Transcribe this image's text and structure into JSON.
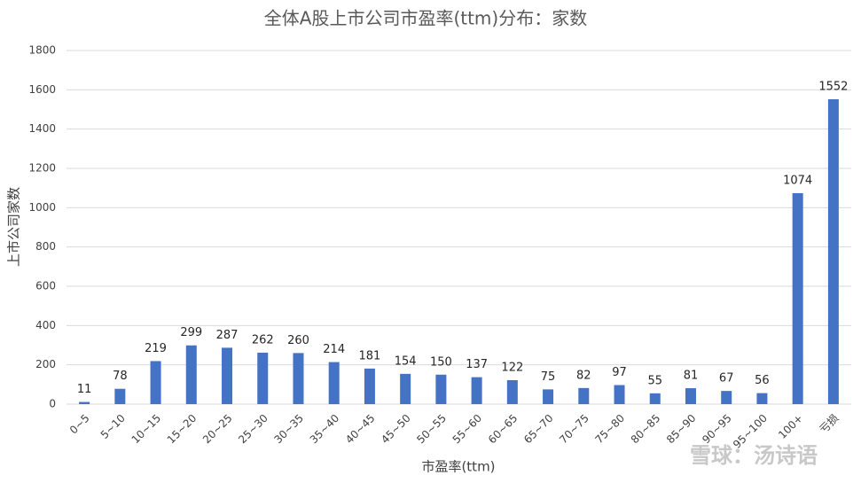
{
  "chart_data": {
    "type": "bar",
    "title": "全体A股上市公司市盈率(ttm)分布：家数",
    "x_label": "市盈率(ttm)",
    "y_label": "上市公司家数",
    "categories": [
      "0~5",
      "5~10",
      "10~15",
      "15~20",
      "20~25",
      "25~30",
      "30~35",
      "35~40",
      "40~45",
      "45~50",
      "50~55",
      "55~60",
      "60~65",
      "65~70",
      "70~75",
      "75~80",
      "80~85",
      "85~90",
      "90~95",
      "95~100",
      "100+",
      "亏损"
    ],
    "values": [
      11,
      78,
      219,
      299,
      287,
      262,
      260,
      214,
      181,
      154,
      150,
      137,
      122,
      75,
      82,
      97,
      55,
      81,
      67,
      56,
      1074,
      1552
    ],
    "color": "#4472c4",
    "ylim": [
      0,
      1800
    ],
    "yticks": [
      0,
      200,
      400,
      600,
      800,
      1000,
      1200,
      1400,
      1600,
      1800
    ],
    "grid": true,
    "data_labels": true,
    "watermark": "雪球：汤诗语"
  }
}
